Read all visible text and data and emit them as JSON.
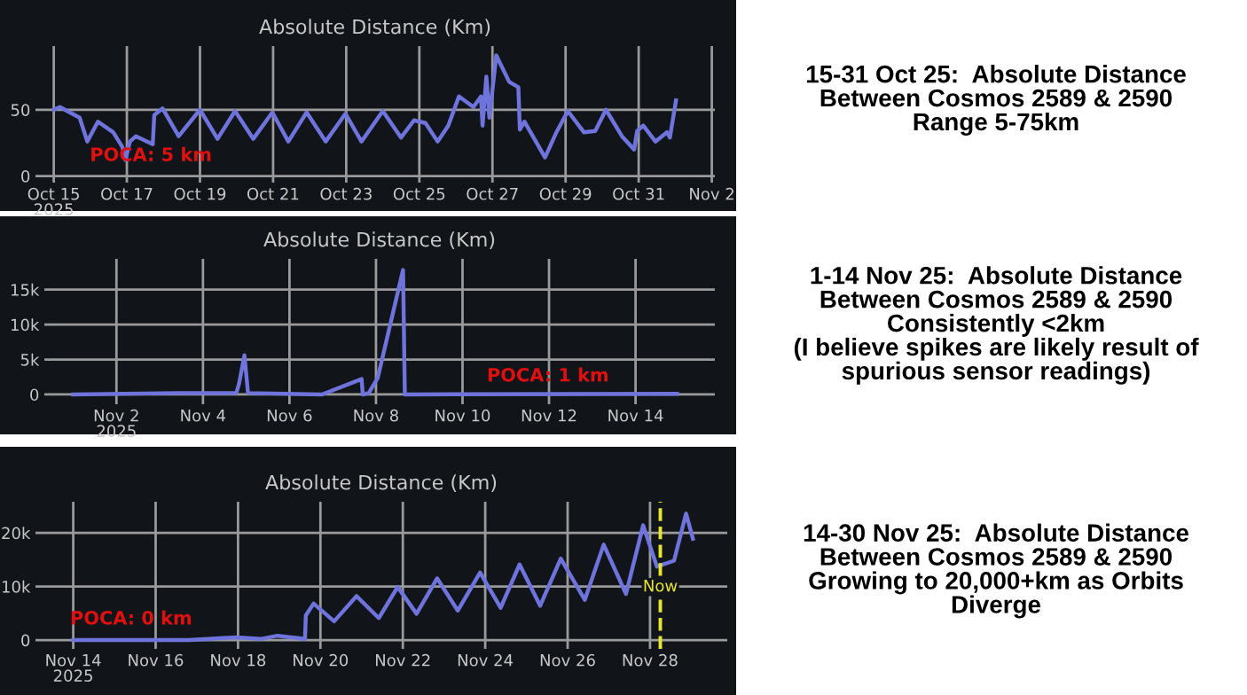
{
  "chart_data": [
    {
      "type": "line",
      "title": "Absolute Distance (Km)",
      "x": [
        "2025-10-15T00:00",
        "2025-10-15T04:00",
        "2025-10-15T17:00",
        "2025-10-15T22:00",
        "2025-10-16T05:00",
        "2025-10-16T15:00",
        "2025-10-16T21:00",
        "2025-10-16T23:00",
        "2025-10-17T02:00",
        "2025-10-17T06:00",
        "2025-10-17T17:00",
        "2025-10-17T18:00",
        "2025-10-17T23:30",
        "2025-10-18T10:00",
        "2025-10-19T00:00",
        "2025-10-19T11:30",
        "2025-10-19T23:00",
        "2025-10-20T11:00",
        "2025-10-20T23:30",
        "2025-10-21T10:00",
        "2025-10-21T22:00",
        "2025-10-22T10:30",
        "2025-10-22T23:30",
        "2025-10-23T10:00",
        "2025-10-24T00:00",
        "2025-10-24T12:00",
        "2025-10-24T20:30",
        "2025-10-25T04:00",
        "2025-10-25T12:00",
        "2025-10-25T19:00",
        "2025-10-26T02:00",
        "2025-10-26T11:30",
        "2025-10-26T16:30",
        "2025-10-26T17:30",
        "2025-10-26T20:00",
        "2025-10-26T22:00",
        "2025-10-27T02:30",
        "2025-10-27T11:00",
        "2025-10-27T17:00",
        "2025-10-27T18:00",
        "2025-10-27T21:00",
        "2025-10-28T10:30",
        "2025-10-28T18:00",
        "2025-10-29T01:30",
        "2025-10-29T12:00",
        "2025-10-29T19:30",
        "2025-10-30T02:30",
        "2025-10-30T13:00",
        "2025-10-30T21:00",
        "2025-10-30T23:00",
        "2025-10-31T03:00",
        "2025-10-31T11:00",
        "2025-10-31T18:30",
        "2025-10-31T20:30",
        "2025-11-01T00:30"
      ],
      "series": [
        {
          "color": "#6f74dd",
          "values": [
            50,
            52,
            44,
            26,
            41,
            33,
            22,
            12,
            26,
            30,
            24,
            46,
            51,
            30,
            50,
            28,
            49,
            28,
            48,
            26,
            48,
            26,
            47,
            26,
            49,
            29,
            42,
            40,
            26,
            38,
            60,
            52,
            60,
            38,
            75,
            44,
            91,
            71,
            67,
            35,
            41,
            14,
            33,
            49,
            33,
            34,
            50,
            30,
            20,
            34,
            38,
            26,
            33,
            29,
            57
          ]
        }
      ],
      "xlim": [
        "2025-10-14T12:00",
        "2025-11-02T02:00"
      ],
      "ylim": [
        -5,
        98
      ],
      "xticks": [
        {
          "value": "2025-10-15",
          "label": "Oct 15\n2025"
        },
        {
          "value": "2025-10-17",
          "label": "Oct 17"
        },
        {
          "value": "2025-10-19",
          "label": "Oct 19"
        },
        {
          "value": "2025-10-21",
          "label": "Oct 21"
        },
        {
          "value": "2025-10-23",
          "label": "Oct 23"
        },
        {
          "value": "2025-10-25",
          "label": "Oct 25"
        },
        {
          "value": "2025-10-27",
          "label": "Oct 27"
        },
        {
          "value": "2025-10-29",
          "label": "Oct 29"
        },
        {
          "value": "2025-10-31",
          "label": "Oct 31"
        },
        {
          "value": "2025-11-02",
          "label": "Nov 2"
        }
      ],
      "yticks": [
        0,
        50
      ],
      "grid": true,
      "annotations": [
        "POCA: 5 km"
      ]
    },
    {
      "type": "other",
      "title": "15-31 Oct 25:  Absolute Distance\nBetween Cosmos 2589 & 2590\nRange 5-75km"
    },
    {
      "type": "line",
      "title": "Absolute Distance (Km)",
      "x": [
        "2025-11-01T00:00",
        "2025-11-03T10:00",
        "2025-11-04T18:30",
        "2025-11-04T20:00",
        "2025-11-04T23:00",
        "2025-11-05T01:00",
        "2025-11-06T18:00",
        "2025-11-07T16:00",
        "2025-11-07T16:40",
        "2025-11-07T20:00",
        "2025-11-08T01:00",
        "2025-11-08T15:00",
        "2025-11-08T16:00",
        "2025-11-14T23:00"
      ],
      "series": [
        {
          "color": "#6f74dd",
          "values": [
            0,
            200,
            200,
            1500,
            5600,
            200,
            0,
            2200,
            0,
            200,
            2400,
            17800,
            0,
            100
          ]
        }
      ],
      "xlim": [
        "2025-10-31T08:00",
        "2025-11-15T20:00"
      ],
      "ylim": [
        -1400,
        19400
      ],
      "xticks": [
        {
          "value": "2025-11-02",
          "label": "Nov 2\n2025"
        },
        {
          "value": "2025-11-04",
          "label": "Nov 4"
        },
        {
          "value": "2025-11-06",
          "label": "Nov 6"
        },
        {
          "value": "2025-11-08",
          "label": "Nov 8"
        },
        {
          "value": "2025-11-10",
          "label": "Nov 10"
        },
        {
          "value": "2025-11-12",
          "label": "Nov 12"
        },
        {
          "value": "2025-11-14",
          "label": "Nov 14"
        }
      ],
      "yticks": [
        0,
        {
          "value": 5000,
          "label": "5k"
        },
        {
          "value": 10000,
          "label": "10k"
        },
        {
          "value": 15000,
          "label": "15k"
        }
      ],
      "grid": true,
      "annotations": [
        "POCA: 1 km"
      ]
    },
    {
      "type": "other",
      "title": "1-14 Nov 25:  Absolute Distance\nBetween Cosmos 2589 & 2590\nConsistently <2km\n(I believe spikes are likely result of\nspurious sensor readings)"
    },
    {
      "type": "line",
      "title": "Absolute Distance (Km)",
      "x": [
        "2025-11-14T00:00",
        "2025-11-16T19:30",
        "2025-11-17T23:00",
        "2025-11-18T13:00",
        "2025-11-18T23:00",
        "2025-11-19T15:00",
        "2025-11-19T15:30",
        "2025-11-19T20:00",
        "2025-11-20T08:00",
        "2025-11-20T21:00",
        "2025-11-21T10:00",
        "2025-11-21T21:00",
        "2025-11-22T08:00",
        "2025-11-22T20:00",
        "2025-11-23T08:00",
        "2025-11-23T21:00",
        "2025-11-24T09:00",
        "2025-11-24T20:00",
        "2025-11-25T08:00",
        "2025-11-25T20:00",
        "2025-11-26T10:00",
        "2025-11-26T21:00",
        "2025-11-27T10:00",
        "2025-11-27T20:00",
        "2025-11-28T04:00",
        "2025-11-28T14:00",
        "2025-11-28T21:00",
        "2025-11-29T01:00"
      ],
      "series": [
        {
          "color": "#6f74dd",
          "values": [
            0,
            0,
            500,
            200,
            800,
            200,
            4600,
            6800,
            3500,
            8200,
            4100,
            9900,
            4900,
            11500,
            5500,
            12600,
            6000,
            14100,
            6400,
            15200,
            7500,
            17800,
            8600,
            21400,
            13700,
            14800,
            23600,
            18900
          ]
        }
      ],
      "xlim": [
        "2025-11-13T02:00",
        "2025-11-29T21:00"
      ],
      "ylim": [
        -1650,
        25800
      ],
      "xticks": [
        {
          "value": "2025-11-14",
          "label": "Nov 14\n2025"
        },
        {
          "value": "2025-11-16",
          "label": "Nov 16"
        },
        {
          "value": "2025-11-18",
          "label": "Nov 18"
        },
        {
          "value": "2025-11-20",
          "label": "Nov 20"
        },
        {
          "value": "2025-11-22",
          "label": "Nov 22"
        },
        {
          "value": "2025-11-24",
          "label": "Nov 24"
        },
        {
          "value": "2025-11-26",
          "label": "Nov 26"
        },
        {
          "value": "2025-11-28",
          "label": "Nov 28"
        }
      ],
      "yticks": [
        0,
        {
          "value": 10000,
          "label": "10k"
        },
        {
          "value": 20000,
          "label": "20k"
        }
      ],
      "grid": true,
      "ref_lines": [
        {
          "axis": "x",
          "value": "2025-11-28T06:00",
          "label": "Now",
          "color": "#e6e62e",
          "line_style": "dashed"
        }
      ],
      "annotations": [
        "POCA: 0 km"
      ]
    },
    {
      "type": "other",
      "title": "14-30 Nov 25:  Absolute Distance\nBetween Cosmos 2589 & 2590\nGrowing to 20,000+km as Orbits\nDiverge"
    }
  ]
}
